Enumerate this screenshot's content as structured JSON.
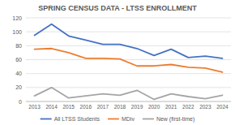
{
  "chart_data": {
    "type": "line",
    "title": "SPRING CENSUS DATA - LTSS ENROLLMENT",
    "categories": [
      "2013",
      "2014",
      "2015",
      "2016",
      "2017",
      "2018",
      "2019",
      "2020",
      "2021",
      "2022",
      "2023",
      "2024"
    ],
    "series": [
      {
        "name": "All LTSS Students",
        "color": "#4472c4",
        "values": [
          95,
          111,
          94,
          88,
          82,
          82,
          76,
          66,
          75,
          63,
          65,
          62
        ]
      },
      {
        "name": "MDiv",
        "color": "#ed7d31",
        "values": [
          75,
          76,
          70,
          62,
          62,
          61,
          51,
          51,
          53,
          49,
          48,
          42
        ]
      },
      {
        "name": "New (first-time)",
        "color": "#a5a5a5",
        "values": [
          8,
          20,
          5,
          8,
          11,
          9,
          16,
          3,
          11,
          7,
          4,
          9
        ]
      }
    ],
    "ylim": [
      0,
      120
    ],
    "yticks": [
      0,
      20,
      40,
      60,
      80,
      100,
      120
    ],
    "grid": true,
    "legend": "bottom"
  }
}
